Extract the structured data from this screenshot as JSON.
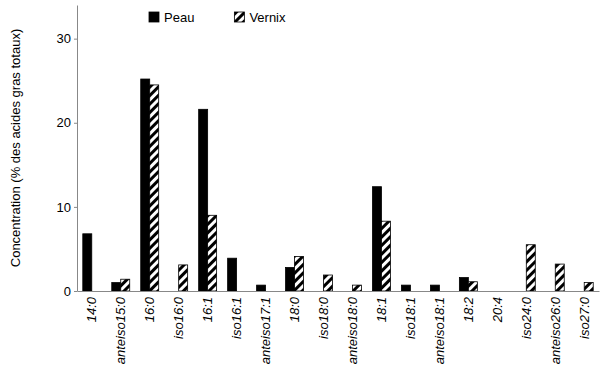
{
  "chart_data": {
    "type": "bar",
    "y_label": "Concentration (% des acides gras totaux)",
    "categories": [
      "14:0",
      "anteiso15:0",
      "16:0",
      "iso16:0",
      "16:1",
      "iso16:1",
      "anteiso17:1",
      "18:0",
      "iso18:0",
      "anteiso18:0",
      "18:1",
      "iso18:1",
      "anteiso18:1",
      "18:2",
      "20:4",
      "iso24:0",
      "anteiso26:0",
      "iso27:0"
    ],
    "series": [
      {
        "name": "Peau",
        "color": "#000000",
        "values": [
          6.8,
          1.0,
          25.2,
          0,
          21.6,
          3.9,
          0.7,
          2.8,
          0,
          0,
          12.4,
          0.7,
          0.7,
          1.6,
          0,
          0,
          0,
          0
        ]
      },
      {
        "name": "Vernix",
        "color": "#000000",
        "values": [
          0,
          1.4,
          24.5,
          3.1,
          9.0,
          0,
          0,
          4.1,
          1.9,
          0.7,
          8.3,
          0,
          0,
          1.1,
          0,
          5.5,
          3.2,
          1.0
        ]
      }
    ],
    "ylim": [
      0,
      34
    ],
    "yticks": [
      0,
      10,
      20,
      30
    ],
    "grid": false,
    "legend": "top-left"
  }
}
